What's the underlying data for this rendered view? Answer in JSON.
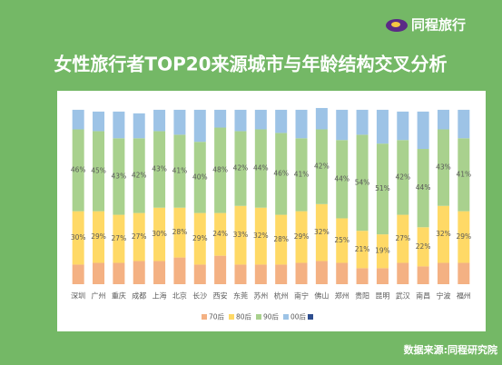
{
  "chart_data": {
    "type": "stacked-bar",
    "brand": "同程旅行",
    "title": "女性旅行者TOP20来源城市与年龄结构交叉分析",
    "source": "数据来源:同程研究院",
    "categories": [
      "深圳",
      "广州",
      "重庆",
      "成都",
      "上海",
      "北京",
      "长沙",
      "西安",
      "东莞",
      "苏州",
      "杭州",
      "南宁",
      "佛山",
      "郑州",
      "贵阳",
      "昆明",
      "武汉",
      "南昌",
      "宁波",
      "福州"
    ],
    "series": [
      {
        "name": "70后",
        "color": "#f4b183",
        "values": [
          11,
          12,
          12,
          13,
          13,
          15,
          11,
          16,
          11,
          11,
          11,
          12,
          13,
          12,
          9,
          9,
          12,
          10,
          12,
          12
        ]
      },
      {
        "name": "80后",
        "color": "#ffd966",
        "values": [
          30,
          29,
          27,
          27,
          30,
          28,
          29,
          24,
          33,
          32,
          28,
          29,
          32,
          25,
          21,
          19,
          27,
          22,
          32,
          29
        ],
        "value_labels": [
          "30%",
          "29%",
          "27%",
          "27%",
          "30%",
          "28%",
          "29%",
          "24%",
          "33%",
          "32%",
          "28%",
          "29%",
          "32%",
          "25%",
          "21%",
          "19%",
          "27%",
          "22%",
          "32%",
          "29%"
        ]
      },
      {
        "name": "90后",
        "color": "#a9d18e",
        "values": [
          46,
          45,
          43,
          42,
          43,
          41,
          40,
          48,
          42,
          44,
          46,
          41,
          42,
          44,
          54,
          51,
          42,
          44,
          43,
          41
        ],
        "value_labels": [
          "46%",
          "45%",
          "43%",
          "42%",
          "43%",
          "41%",
          "40%",
          "48%",
          "42%",
          "44%",
          "46%",
          "41%",
          "42%",
          "44%",
          "54%",
          "51%",
          "42%",
          "44%",
          "43%",
          "41%"
        ]
      },
      {
        "name": "00后",
        "color": "#9dc3e6",
        "values": [
          11,
          11,
          15,
          14,
          12,
          14,
          18,
          10,
          12,
          11,
          13,
          16,
          12,
          17,
          14,
          19,
          16,
          21,
          11,
          16
        ]
      }
    ]
  }
}
